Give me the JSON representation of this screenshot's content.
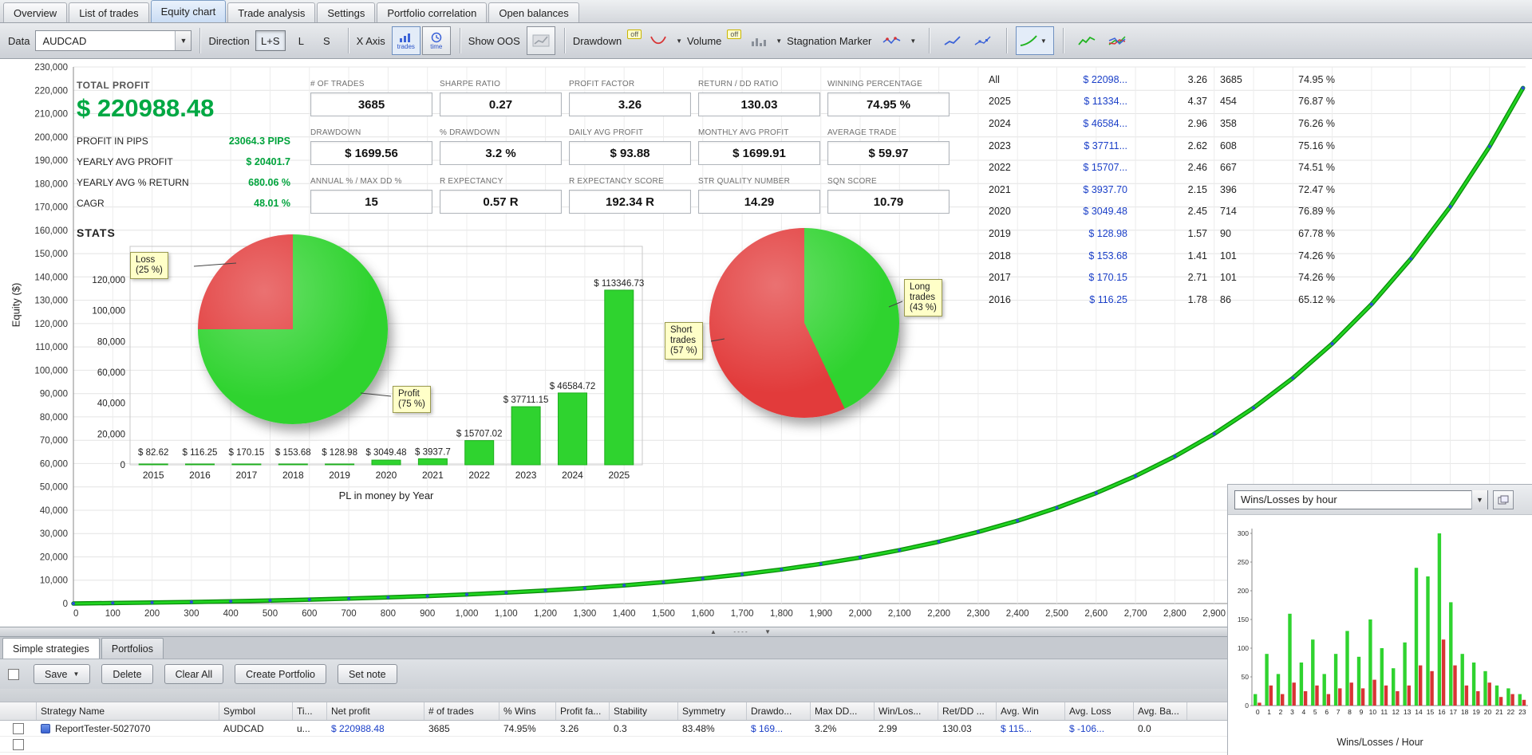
{
  "main_tabs": [
    {
      "label": "Overview",
      "active": false
    },
    {
      "label": "List of trades",
      "active": false
    },
    {
      "label": "Equity chart",
      "active": true
    },
    {
      "label": "Trade analysis",
      "active": false
    },
    {
      "label": "Settings",
      "active": false
    },
    {
      "label": "Portfolio correlation",
      "active": false
    },
    {
      "label": "Open balances",
      "active": false
    }
  ],
  "toolbar": {
    "data_label": "Data",
    "symbol": "AUDCAD",
    "direction_label": "Direction",
    "direction_lps": "L+S",
    "direction_l": "L",
    "direction_s": "S",
    "xaxis_label": "X Axis",
    "xaxis_trades_caption": "trades",
    "xaxis_time_caption": "time",
    "show_oos_label": "Show OOS",
    "drawdown_label": "Drawdown",
    "drawdown_state": "off",
    "volume_label": "Volume",
    "volume_state": "off",
    "stagnation_label": "Stagnation Marker"
  },
  "stats": {
    "total_profit_label": "TOTAL PROFIT",
    "total_profit": "$ 220988.48",
    "rows": [
      {
        "label": "PROFIT IN PIPS",
        "value": "23064.3 PIPS"
      },
      {
        "label": "YEARLY AVG PROFIT",
        "value": "$ 20401.7"
      },
      {
        "label": "YEARLY AVG % RETURN",
        "value": "680.06 %"
      },
      {
        "label": "CAGR",
        "value": "48.01 %"
      }
    ],
    "stats_heading": "STATS"
  },
  "metrics": [
    {
      "label": "# OF TRADES",
      "value": "3685"
    },
    {
      "label": "SHARPE RATIO",
      "value": "0.27"
    },
    {
      "label": "PROFIT FACTOR",
      "value": "3.26"
    },
    {
      "label": "RETURN / DD RATIO",
      "value": "130.03"
    },
    {
      "label": "WINNING PERCENTAGE",
      "value": "74.95 %"
    },
    {
      "label": "DRAWDOWN",
      "value": "$ 1699.56"
    },
    {
      "label": "% DRAWDOWN",
      "value": "3.2 %"
    },
    {
      "label": "DAILY AVG PROFIT",
      "value": "$ 93.88"
    },
    {
      "label": "MONTHLY AVG PROFIT",
      "value": "$ 1699.91"
    },
    {
      "label": "AVERAGE TRADE",
      "value": "$ 59.97"
    },
    {
      "label": "ANNUAL % / MAX DD %",
      "value": "15"
    },
    {
      "label": "R EXPECTANCY",
      "value": "0.57 R"
    },
    {
      "label": "R EXPECTANCY SCORE",
      "value": "192.34 R"
    },
    {
      "label": "STR QUALITY NUMBER",
      "value": "14.29"
    },
    {
      "label": "SQN SCORE",
      "value": "10.79"
    }
  ],
  "year_table": {
    "rows": [
      {
        "year": "All",
        "profit": "$ 22098...",
        "pf": "3.26",
        "trades": "3685",
        "win": "74.95 %"
      },
      {
        "year": "2025",
        "profit": "$ 11334...",
        "pf": "4.37",
        "trades": "454",
        "win": "76.87 %"
      },
      {
        "year": "2024",
        "profit": "$ 46584...",
        "pf": "2.96",
        "trades": "358",
        "win": "76.26 %"
      },
      {
        "year": "2023",
        "profit": "$ 37711...",
        "pf": "2.62",
        "trades": "608",
        "win": "75.16 %"
      },
      {
        "year": "2022",
        "profit": "$ 15707...",
        "pf": "2.46",
        "trades": "667",
        "win": "74.51 %"
      },
      {
        "year": "2021",
        "profit": "$ 3937.70",
        "pf": "2.15",
        "trades": "396",
        "win": "72.47 %"
      },
      {
        "year": "2020",
        "profit": "$ 3049.48",
        "pf": "2.45",
        "trades": "714",
        "win": "76.89 %"
      },
      {
        "year": "2019",
        "profit": "$ 128.98",
        "pf": "1.57",
        "trades": "90",
        "win": "67.78 %"
      },
      {
        "year": "2018",
        "profit": "$ 153.68",
        "pf": "1.41",
        "trades": "101",
        "win": "74.26 %"
      },
      {
        "year": "2017",
        "profit": "$ 170.15",
        "pf": "2.71",
        "trades": "101",
        "win": "74.26 %"
      },
      {
        "year": "2016",
        "profit": "$ 116.25",
        "pf": "1.78",
        "trades": "86",
        "win": "65.12 %"
      }
    ]
  },
  "chart_data": [
    {
      "type": "line",
      "name": "equity-curve",
      "ylabel": "Equity ($)",
      "x_max": 3600,
      "x_tick_step": 100,
      "y_max": 230000,
      "y_tick_step": 10000,
      "line_color": "#21d421",
      "marker_color": "#2b4fd4",
      "points": [
        [
          0,
          0
        ],
        [
          100,
          192
        ],
        [
          200,
          412
        ],
        [
          300,
          666
        ],
        [
          400,
          958
        ],
        [
          500,
          1294
        ],
        [
          600,
          1681
        ],
        [
          700,
          2125
        ],
        [
          800,
          2636
        ],
        [
          900,
          3224
        ],
        [
          1000,
          3900
        ],
        [
          1100,
          4678
        ],
        [
          1200,
          5573
        ],
        [
          1300,
          6603
        ],
        [
          1400,
          7787
        ],
        [
          1500,
          9149
        ],
        [
          1600,
          10715
        ],
        [
          1700,
          12517
        ],
        [
          1800,
          14590
        ],
        [
          1900,
          16974
        ],
        [
          2000,
          19715
        ],
        [
          2100,
          22872
        ],
        [
          2200,
          26500
        ],
        [
          2300,
          30677
        ],
        [
          2400,
          35475
        ],
        [
          2500,
          41000
        ],
        [
          2600,
          47352
        ],
        [
          2700,
          54660
        ],
        [
          2800,
          63064
        ],
        [
          2900,
          72733
        ],
        [
          3000,
          83856
        ],
        [
          3100,
          96649
        ],
        [
          3200,
          111364
        ],
        [
          3300,
          128285
        ],
        [
          3400,
          147766
        ],
        [
          3500,
          170159
        ],
        [
          3600,
          195920
        ],
        [
          3685,
          220988
        ]
      ]
    },
    {
      "type": "pie",
      "name": "profit-loss-pie",
      "slices": [
        {
          "label": "Profit",
          "pct": 75,
          "color": "#2fd32f",
          "callout": "Profit\n(75 %)"
        },
        {
          "label": "Loss",
          "pct": 25,
          "color": "#e23b3b",
          "callout": "Loss\n(25 %)"
        }
      ]
    },
    {
      "type": "bar",
      "name": "pl-by-year",
      "title": "PL in money by Year",
      "categories": [
        2015,
        2016,
        2017,
        2018,
        2019,
        2020,
        2021,
        2022,
        2023,
        2024,
        2025
      ],
      "values": [
        82.62,
        116.25,
        170.15,
        153.68,
        128.98,
        3049.48,
        3937.7,
        15707.02,
        37711.15,
        46584.72,
        113346.73
      ],
      "labels": [
        "$ 82.62",
        "$ 116.25",
        "$ 170.15",
        "$ 153.68",
        "$ 128.98",
        "$ 3049.48",
        "$ 3937.7",
        "$ 15707.02",
        "$ 37711.15",
        "$ 46584.72",
        "$ 113346.73"
      ],
      "ylim": [
        0,
        120000
      ],
      "y_tick_step": 20000,
      "bar_color": "#2fd32f"
    },
    {
      "type": "pie",
      "name": "long-short-pie",
      "slices": [
        {
          "label": "Long trades",
          "pct": 43,
          "color": "#2fd32f",
          "callout": "Long\ntrades\n(43 %)"
        },
        {
          "label": "Short trades",
          "pct": 57,
          "color": "#e23b3b",
          "callout": "Short\ntrades\n(57 %)"
        }
      ]
    },
    {
      "type": "bar",
      "name": "wins-losses-by-hour",
      "caption": "Wins/Losses / Hour",
      "categories": [
        0,
        1,
        2,
        3,
        4,
        5,
        6,
        7,
        8,
        9,
        10,
        11,
        12,
        13,
        14,
        15,
        16,
        17,
        18,
        19,
        20,
        21,
        22,
        23
      ],
      "series": [
        {
          "name": "Wins",
          "color": "#2fd32f",
          "values": [
            20,
            90,
            55,
            160,
            75,
            115,
            55,
            90,
            130,
            85,
            150,
            100,
            65,
            110,
            240,
            225,
            300,
            180,
            90,
            75,
            60,
            35,
            30,
            20
          ]
        },
        {
          "name": "Losses",
          "color": "#d83434",
          "values": [
            5,
            35,
            20,
            40,
            25,
            35,
            20,
            30,
            40,
            30,
            45,
            35,
            25,
            35,
            70,
            60,
            115,
            70,
            35,
            25,
            40,
            15,
            20,
            10
          ]
        }
      ],
      "ylim": [
        0,
        300
      ],
      "y_tick_step": 50
    }
  ],
  "right_panel": {
    "selector_value": "Wins/Losses by hour"
  },
  "splitter": {
    "up": "▲",
    "dots": "‐ ‐ ‐ ‐",
    "down": "▼"
  },
  "bottom_panel": {
    "tabs": [
      {
        "label": "Simple strategies",
        "active": true
      },
      {
        "label": "Portfolios",
        "active": false
      }
    ],
    "buttons": {
      "save": "Save",
      "delete": "Delete",
      "clear_all": "Clear All",
      "create_portfolio": "Create Portfolio",
      "set_note": "Set note"
    },
    "table": {
      "columns": [
        "Strategy Name",
        "Symbol",
        "Ti...",
        "Net profit",
        "# of trades",
        "% Wins",
        "Profit fa...",
        "Stability",
        "Symmetry",
        "Drawdo...",
        "Max DD...",
        "Win/Los...",
        "Ret/DD ...",
        "Avg. Win",
        "Avg. Loss",
        "Avg. Ba..."
      ],
      "rows": [
        [
          "ReportTester-5027070",
          "AUDCAD",
          "u...",
          "$ 220988.48",
          "3685",
          "74.95%",
          "3.26",
          "0.3",
          "83.48%",
          "$ 169...",
          "3.2%",
          "2.99",
          "130.03",
          "$ 115...",
          "$ -106...",
          "0.0"
        ]
      ]
    }
  }
}
